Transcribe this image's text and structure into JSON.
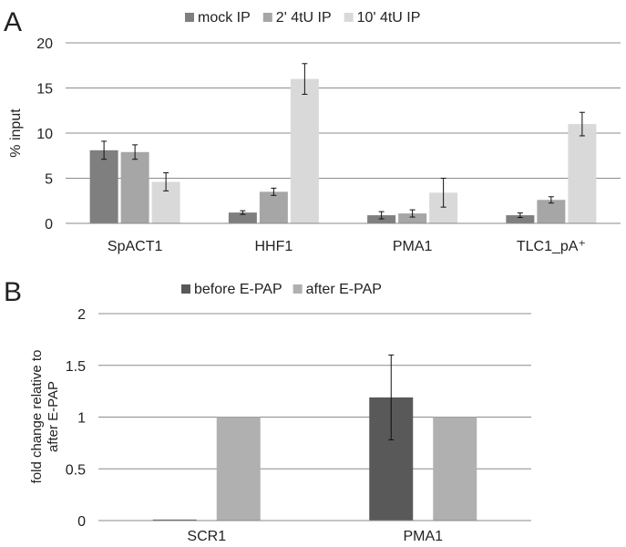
{
  "chart_data": [
    {
      "panel": "A",
      "type": "bar",
      "title": "",
      "xlabel": "",
      "ylabel": "% input",
      "ylim": [
        0,
        20
      ],
      "yticks": [
        "0",
        "5",
        "10",
        "15",
        "20"
      ],
      "grid": true,
      "legend_position": "top",
      "categories": [
        "SpACT1",
        "HHF1",
        "PMA1",
        "TLC1_pA⁺"
      ],
      "series": [
        {
          "name": "mock IP",
          "color": "#7f7f7f",
          "values": [
            8.1,
            1.2,
            0.9,
            0.9
          ],
          "errors": [
            1.0,
            0.2,
            0.4,
            0.25
          ]
        },
        {
          "name": "2' 4tU IP",
          "color": "#a6a6a6",
          "values": [
            7.9,
            3.5,
            1.1,
            2.6
          ],
          "errors": [
            0.8,
            0.4,
            0.4,
            0.35
          ]
        },
        {
          "name": "10' 4tU IP",
          "color": "#d9d9d9",
          "values": [
            4.6,
            16.0,
            3.4,
            11.0
          ],
          "errors": [
            1.0,
            1.7,
            1.6,
            1.3
          ]
        }
      ]
    },
    {
      "panel": "B",
      "type": "bar",
      "title": "",
      "xlabel": "",
      "ylabel": "fold change relative to after E-PAP",
      "ylabel_lines": [
        "fold change relative to",
        "after E-PAP"
      ],
      "ylim": [
        0,
        2
      ],
      "yticks": [
        "0",
        "0.5",
        "1",
        "1.5",
        "2"
      ],
      "grid": true,
      "legend_position": "top",
      "categories": [
        "SCR1",
        "PMA1"
      ],
      "series": [
        {
          "name": "before E-PAP",
          "color": "#595959",
          "values": [
            0.01,
            1.19
          ],
          "errors": [
            null,
            0.41
          ]
        },
        {
          "name": "after E-PAP",
          "color": "#b0b0b0",
          "values": [
            1.0,
            1.0
          ],
          "errors": [
            null,
            null
          ]
        }
      ]
    }
  ]
}
